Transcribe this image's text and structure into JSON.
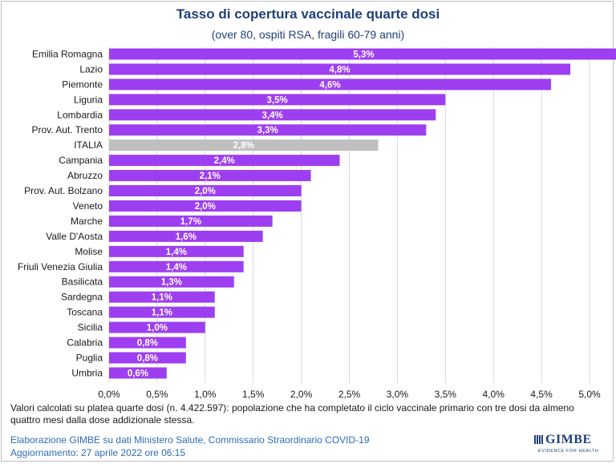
{
  "chart_data": {
    "type": "bar",
    "orientation": "horizontal",
    "title": "Tasso di copertura vaccinale quarte dosi",
    "subtitle": "(over 80, ospiti RSA, fragili 60-79 anni)",
    "categories": [
      "Emilia Romagna",
      "Lazio",
      "Piemonte",
      "Liguria",
      "Lombardia",
      "Prov. Aut. Trento",
      "ITALIA",
      "Campania",
      "Abruzzo",
      "Prov. Aut. Bolzano",
      "Veneto",
      "Marche",
      "Valle D'Aosta",
      "Molise",
      "Friuli Venezia Giulia",
      "Basilicata",
      "Sardegna",
      "Toscana",
      "Sicilia",
      "Calabria",
      "Puglia",
      "Umbria"
    ],
    "values": [
      5.3,
      4.8,
      4.6,
      3.5,
      3.4,
      3.3,
      2.8,
      2.4,
      2.1,
      2.0,
      2.0,
      1.7,
      1.6,
      1.4,
      1.4,
      1.3,
      1.1,
      1.1,
      1.0,
      0.8,
      0.8,
      0.6
    ],
    "value_labels": [
      "5,3%",
      "4,8%",
      "4,6%",
      "3,5%",
      "3,4%",
      "3,3%",
      "2,8%",
      "2,4%",
      "2,1%",
      "2,0%",
      "2,0%",
      "1,7%",
      "1,6%",
      "1,4%",
      "1,4%",
      "1,3%",
      "1,1%",
      "1,1%",
      "1,0%",
      "0,8%",
      "0,8%",
      "0,6%"
    ],
    "xlim": [
      0,
      5.0
    ],
    "xticks": [
      0,
      0.5,
      1.0,
      1.5,
      2.0,
      2.5,
      3.0,
      3.5,
      4.0,
      4.5,
      5.0
    ],
    "xtick_labels": [
      "0,0%",
      "0,5%",
      "1,0%",
      "1,5%",
      "2,0%",
      "2,5%",
      "3,0%",
      "3,5%",
      "4,0%",
      "4,5%",
      "5,0%"
    ],
    "grid": "vertical",
    "colors": {
      "bar": "#9d3ff0",
      "highlight": "#bfbfbf",
      "grid": "#d9d9d9"
    },
    "highlight_category": "ITALIA"
  },
  "footnote": "Valori calcolati su platea quarte dosi (n. 4.422.597): popolazione che ha completato il ciclo vaccinale primario con tre dosi da almeno quattro mesi dalla dose addizionale stessa.",
  "credit": "Elaborazione GIMBE su dati Ministero Salute, Commissario Straordinario COVID-19",
  "updated": "Aggiornamento: 27 aprile 2022 ore 06:15",
  "logo": {
    "name": "GIMBE",
    "tagline": "EVIDENCE FOR HEALTH"
  }
}
